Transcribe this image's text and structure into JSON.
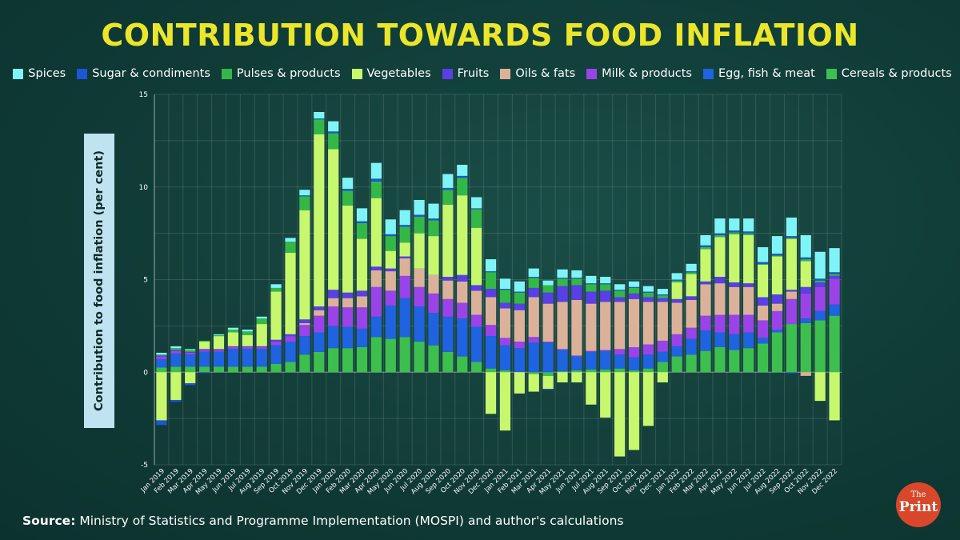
{
  "chart_data": {
    "type": "bar",
    "title": "CONTRIBUTION TOWARDS FOOD INFLATION",
    "ylabel": "Contribution to food inflation (per cent)",
    "xlabel": "",
    "ylim": [
      -5,
      15
    ],
    "yticks": [
      -5,
      0,
      5,
      10,
      15
    ],
    "categories": [
      "Jan 2019",
      "Feb 2019",
      "Mar 2019",
      "Apr 2019",
      "May 2019",
      "Jun 2019",
      "Jul 2019",
      "Aug 2019",
      "Sep 2019",
      "Oct 2019",
      "Nov 2019",
      "Dec 2019",
      "Jan 2020",
      "Feb 2020",
      "Mar 2020",
      "Apr 2020",
      "May 2020",
      "Jun 2020",
      "Jul 2020",
      "Aug 2020",
      "Sep 2020",
      "Oct 2020",
      "Nov 2020",
      "Dec 2020",
      "Jan 2021",
      "Feb 2021",
      "Mar 2021",
      "Apr 2021",
      "May 2021",
      "Jun 2021",
      "Jul 2021",
      "Aug 2021",
      "Sep 2021",
      "Oct 2021",
      "Nov 2021",
      "Dec 2021",
      "Jan 2022",
      "Feb 2022",
      "Mar 2022",
      "Apr 2022",
      "May 2022",
      "Jun 2022",
      "Jul 2022",
      "Aug 2022",
      "Sep 2022",
      "Oct 2022",
      "Nov 2022",
      "Dec 2022"
    ],
    "series": [
      {
        "name": "Cereals & products",
        "color": "#3dbf4f",
        "values": [
          0.25,
          0.3,
          0.3,
          0.3,
          0.3,
          0.3,
          0.3,
          0.3,
          0.45,
          0.55,
          0.95,
          1.1,
          1.3,
          1.3,
          1.35,
          1.9,
          1.8,
          1.9,
          1.65,
          1.45,
          1.1,
          0.85,
          0.55,
          0.2,
          0.1,
          0,
          -0.1,
          -0.2,
          0.05,
          0.1,
          0.15,
          0.15,
          0.2,
          0.1,
          0.2,
          0.55,
          0.85,
          0.95,
          1.15,
          1.35,
          1.2,
          1.3,
          1.55,
          2.15,
          2.6,
          2.65,
          2.8,
          3.05
        ]
      },
      {
        "name": "Egg, fish & meat",
        "color": "#1f63e0",
        "values": [
          0.45,
          0.7,
          0.65,
          0.8,
          0.8,
          0.95,
          0.95,
          0.95,
          1,
          1.1,
          1,
          1.05,
          1.2,
          1.15,
          1.0,
          1.1,
          1.8,
          2.1,
          1.9,
          1.75,
          1.9,
          2.05,
          1.9,
          1.75,
          1.35,
          1.3,
          1.6,
          1.6,
          1.15,
          0.75,
          0.95,
          1.0,
          0.75,
          0.7,
          0.75,
          0.55,
          0.55,
          0.85,
          1.1,
          0.8,
          0.85,
          0.85,
          0.3,
          0.15,
          -0.05,
          0.25,
          0.5,
          0.6
        ]
      },
      {
        "name": "Milk & products",
        "color": "#9a43e8",
        "values": [
          0.15,
          0.15,
          0.1,
          0.1,
          0.1,
          0.1,
          0.1,
          0.1,
          0.2,
          0.3,
          0.6,
          0.9,
          1.05,
          1.05,
          1.15,
          1.6,
          0.8,
          1.2,
          1.05,
          1.05,
          0.95,
          0.85,
          0.65,
          0.6,
          0.4,
          0.35,
          0.3,
          0.05,
          0.05,
          0.05,
          0.05,
          0.05,
          0.3,
          0.55,
          0.55,
          0.6,
          0.65,
          0.6,
          0.8,
          0.95,
          1.05,
          0.95,
          0.95,
          1.0,
          1.35,
          1.35,
          1.3,
          1.4
        ]
      },
      {
        "name": "Oils & fats",
        "color": "#dcb19a",
        "values": [
          0,
          0,
          0,
          0,
          0,
          0,
          0,
          0,
          0,
          0,
          0.1,
          0.3,
          0.45,
          0.5,
          0.6,
          0.9,
          1.05,
          0.95,
          1.0,
          1.0,
          1.0,
          1.15,
          1.3,
          1.5,
          1.6,
          1.7,
          2.15,
          2.05,
          2.55,
          3.0,
          2.55,
          2.6,
          2.55,
          2.6,
          2.3,
          2.1,
          1.7,
          1.5,
          1.7,
          1.7,
          1.5,
          1.5,
          0.8,
          0.4,
          0.4,
          -0.2,
          0,
          0
        ]
      },
      {
        "name": "Fruits",
        "color": "#5a3ee6",
        "values": [
          0.05,
          0.05,
          0.05,
          0.05,
          0.05,
          0.05,
          0.05,
          0.05,
          0.1,
          0.1,
          0.2,
          0.2,
          0.45,
          0.3,
          0.3,
          0.2,
          0.15,
          0.1,
          0.0,
          0.0,
          0.2,
          0.35,
          0.3,
          0.45,
          0.3,
          0.35,
          0.5,
          0.6,
          0.85,
          0.8,
          0.65,
          0.6,
          0.25,
          0.3,
          0.25,
          0.2,
          0.2,
          0.2,
          0.15,
          0.35,
          0.25,
          0.2,
          0.45,
          0.5,
          0.1,
          0.35,
          0.25,
          0.15
        ]
      },
      {
        "name": "Vegetables",
        "color": "#c7f76d",
        "values": [
          -2.6,
          -1.5,
          -0.6,
          0.4,
          0.7,
          0.75,
          0.6,
          1.2,
          2.6,
          4.4,
          5.9,
          9.3,
          7.6,
          4.7,
          2.8,
          3.7,
          0.95,
          0.75,
          1.9,
          2.1,
          3.9,
          4.3,
          3.1,
          -2.25,
          -3.15,
          -1.15,
          -0.95,
          -0.7,
          -0.55,
          -0.55,
          -1.75,
          -2.45,
          -4.55,
          -4.2,
          -2.9,
          -0.55,
          0.9,
          1.2,
          1.75,
          2.15,
          2.6,
          2.6,
          1.75,
          2.05,
          2.75,
          1.4,
          -1.55,
          -2.6
        ]
      },
      {
        "name": "Pulses & products",
        "color": "#33b848",
        "values": [
          0.05,
          0.1,
          0.1,
          0.05,
          0.05,
          0.15,
          0.2,
          0.3,
          0.2,
          0.6,
          0.75,
          0.8,
          0.85,
          0.8,
          0.85,
          0.9,
          0.8,
          0.85,
          0.9,
          0.85,
          0.8,
          0.95,
          1.0,
          0.9,
          0.7,
          0.6,
          0.55,
          0.4,
          0.4,
          0.35,
          0.4,
          0.35,
          0.35,
          0.3,
          0.25,
          0.15,
          0.1,
          0.1,
          0.1,
          0.1,
          0.1,
          0.1,
          0.05,
          0.05,
          0.05,
          0.1,
          0.1,
          0.1
        ]
      },
      {
        "name": "Sugar & condiments",
        "color": "#1a56d6",
        "values": [
          -0.25,
          -0.1,
          -0.1,
          -0.05,
          0,
          0,
          0,
          0,
          0,
          0,
          0.05,
          0.05,
          0.1,
          0.1,
          0.1,
          0.15,
          0.1,
          0.1,
          0.1,
          0.1,
          0.1,
          0.1,
          0.05,
          0.05,
          0.05,
          0.05,
          0.05,
          -0.05,
          0.05,
          0.05,
          0.05,
          0.05,
          0.05,
          0.05,
          0.05,
          0.05,
          0.05,
          0.05,
          0.1,
          0.1,
          0.1,
          0.1,
          0.1,
          0.1,
          0.1,
          0.1,
          0.1,
          0.1
        ]
      },
      {
        "name": "Spices",
        "color": "#7ff4f8",
        "values": [
          0.1,
          0.1,
          0.05,
          0,
          0.05,
          0.1,
          0.1,
          0.1,
          0.2,
          0.2,
          0.3,
          0.35,
          0.55,
          0.6,
          0.7,
          0.85,
          0.8,
          0.8,
          0.8,
          0.8,
          0.75,
          0.6,
          0.6,
          0.65,
          0.55,
          0.55,
          0.45,
          0.25,
          0.45,
          0.4,
          0.4,
          0.35,
          0.3,
          0.3,
          0.3,
          0.3,
          0.35,
          0.4,
          0.55,
          0.8,
          0.65,
          0.7,
          0.8,
          0.95,
          1.0,
          1.2,
          1.45,
          1.3
        ]
      }
    ],
    "legend_order": [
      "Spices",
      "Sugar & condiments",
      "Pulses & products",
      "Vegetables",
      "Fruits",
      "Oils & fats",
      "Milk & products",
      "Egg, fish & meat",
      "Cereals & products"
    ],
    "grid": true,
    "legend_position": "top"
  },
  "source_label": "Source:",
  "source_text": "Ministry of Statistics and Programme Implementation (MOSPI) and author's calculations",
  "logo": {
    "line1": "The",
    "line2": "Print"
  }
}
